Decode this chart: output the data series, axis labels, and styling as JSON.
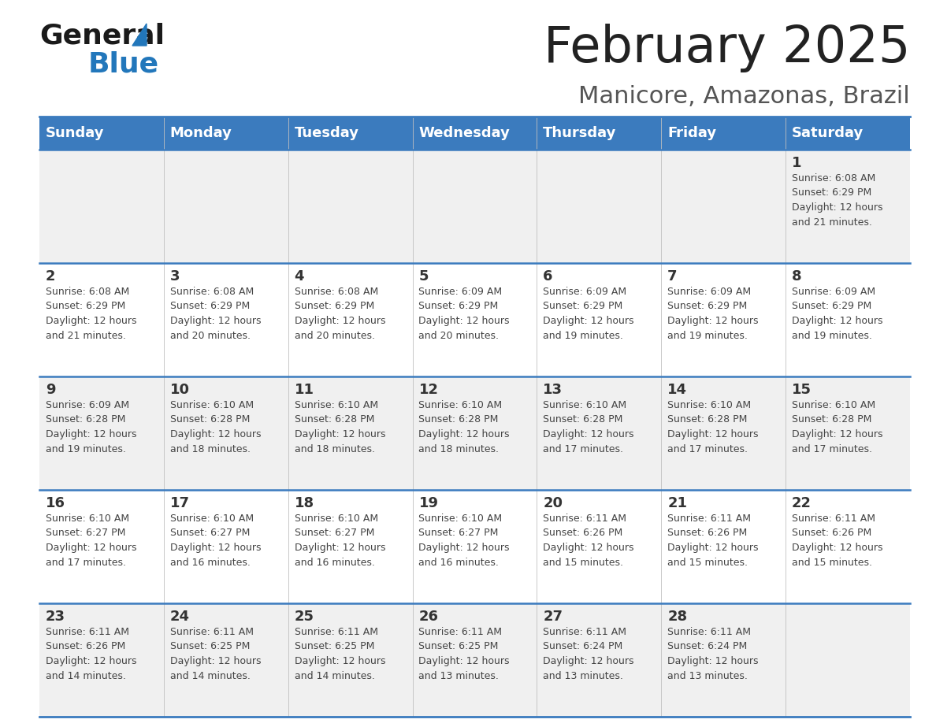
{
  "title": "February 2025",
  "subtitle": "Manicore, Amazonas, Brazil",
  "days_of_week": [
    "Sunday",
    "Monday",
    "Tuesday",
    "Wednesday",
    "Thursday",
    "Friday",
    "Saturday"
  ],
  "header_bg": "#3B7BBE",
  "header_text_color": "#FFFFFF",
  "cell_bg_odd": "#F0F0F0",
  "cell_bg_even": "#FFFFFF",
  "border_color": "#3B7BBE",
  "text_color": "#444444",
  "day_num_color": "#333333",
  "title_color": "#222222",
  "subtitle_color": "#555555",
  "logo_general_color": "#1a1a1a",
  "logo_blue_color": "#2277BB",
  "weeks": [
    [
      {
        "day": null,
        "info": null
      },
      {
        "day": null,
        "info": null
      },
      {
        "day": null,
        "info": null
      },
      {
        "day": null,
        "info": null
      },
      {
        "day": null,
        "info": null
      },
      {
        "day": null,
        "info": null
      },
      {
        "day": 1,
        "info": "Sunrise: 6:08 AM\nSunset: 6:29 PM\nDaylight: 12 hours\nand 21 minutes."
      }
    ],
    [
      {
        "day": 2,
        "info": "Sunrise: 6:08 AM\nSunset: 6:29 PM\nDaylight: 12 hours\nand 21 minutes."
      },
      {
        "day": 3,
        "info": "Sunrise: 6:08 AM\nSunset: 6:29 PM\nDaylight: 12 hours\nand 20 minutes."
      },
      {
        "day": 4,
        "info": "Sunrise: 6:08 AM\nSunset: 6:29 PM\nDaylight: 12 hours\nand 20 minutes."
      },
      {
        "day": 5,
        "info": "Sunrise: 6:09 AM\nSunset: 6:29 PM\nDaylight: 12 hours\nand 20 minutes."
      },
      {
        "day": 6,
        "info": "Sunrise: 6:09 AM\nSunset: 6:29 PM\nDaylight: 12 hours\nand 19 minutes."
      },
      {
        "day": 7,
        "info": "Sunrise: 6:09 AM\nSunset: 6:29 PM\nDaylight: 12 hours\nand 19 minutes."
      },
      {
        "day": 8,
        "info": "Sunrise: 6:09 AM\nSunset: 6:29 PM\nDaylight: 12 hours\nand 19 minutes."
      }
    ],
    [
      {
        "day": 9,
        "info": "Sunrise: 6:09 AM\nSunset: 6:28 PM\nDaylight: 12 hours\nand 19 minutes."
      },
      {
        "day": 10,
        "info": "Sunrise: 6:10 AM\nSunset: 6:28 PM\nDaylight: 12 hours\nand 18 minutes."
      },
      {
        "day": 11,
        "info": "Sunrise: 6:10 AM\nSunset: 6:28 PM\nDaylight: 12 hours\nand 18 minutes."
      },
      {
        "day": 12,
        "info": "Sunrise: 6:10 AM\nSunset: 6:28 PM\nDaylight: 12 hours\nand 18 minutes."
      },
      {
        "day": 13,
        "info": "Sunrise: 6:10 AM\nSunset: 6:28 PM\nDaylight: 12 hours\nand 17 minutes."
      },
      {
        "day": 14,
        "info": "Sunrise: 6:10 AM\nSunset: 6:28 PM\nDaylight: 12 hours\nand 17 minutes."
      },
      {
        "day": 15,
        "info": "Sunrise: 6:10 AM\nSunset: 6:28 PM\nDaylight: 12 hours\nand 17 minutes."
      }
    ],
    [
      {
        "day": 16,
        "info": "Sunrise: 6:10 AM\nSunset: 6:27 PM\nDaylight: 12 hours\nand 17 minutes."
      },
      {
        "day": 17,
        "info": "Sunrise: 6:10 AM\nSunset: 6:27 PM\nDaylight: 12 hours\nand 16 minutes."
      },
      {
        "day": 18,
        "info": "Sunrise: 6:10 AM\nSunset: 6:27 PM\nDaylight: 12 hours\nand 16 minutes."
      },
      {
        "day": 19,
        "info": "Sunrise: 6:10 AM\nSunset: 6:27 PM\nDaylight: 12 hours\nand 16 minutes."
      },
      {
        "day": 20,
        "info": "Sunrise: 6:11 AM\nSunset: 6:26 PM\nDaylight: 12 hours\nand 15 minutes."
      },
      {
        "day": 21,
        "info": "Sunrise: 6:11 AM\nSunset: 6:26 PM\nDaylight: 12 hours\nand 15 minutes."
      },
      {
        "day": 22,
        "info": "Sunrise: 6:11 AM\nSunset: 6:26 PM\nDaylight: 12 hours\nand 15 minutes."
      }
    ],
    [
      {
        "day": 23,
        "info": "Sunrise: 6:11 AM\nSunset: 6:26 PM\nDaylight: 12 hours\nand 14 minutes."
      },
      {
        "day": 24,
        "info": "Sunrise: 6:11 AM\nSunset: 6:25 PM\nDaylight: 12 hours\nand 14 minutes."
      },
      {
        "day": 25,
        "info": "Sunrise: 6:11 AM\nSunset: 6:25 PM\nDaylight: 12 hours\nand 14 minutes."
      },
      {
        "day": 26,
        "info": "Sunrise: 6:11 AM\nSunset: 6:25 PM\nDaylight: 12 hours\nand 13 minutes."
      },
      {
        "day": 27,
        "info": "Sunrise: 6:11 AM\nSunset: 6:24 PM\nDaylight: 12 hours\nand 13 minutes."
      },
      {
        "day": 28,
        "info": "Sunrise: 6:11 AM\nSunset: 6:24 PM\nDaylight: 12 hours\nand 13 minutes."
      },
      {
        "day": null,
        "info": null
      }
    ]
  ]
}
